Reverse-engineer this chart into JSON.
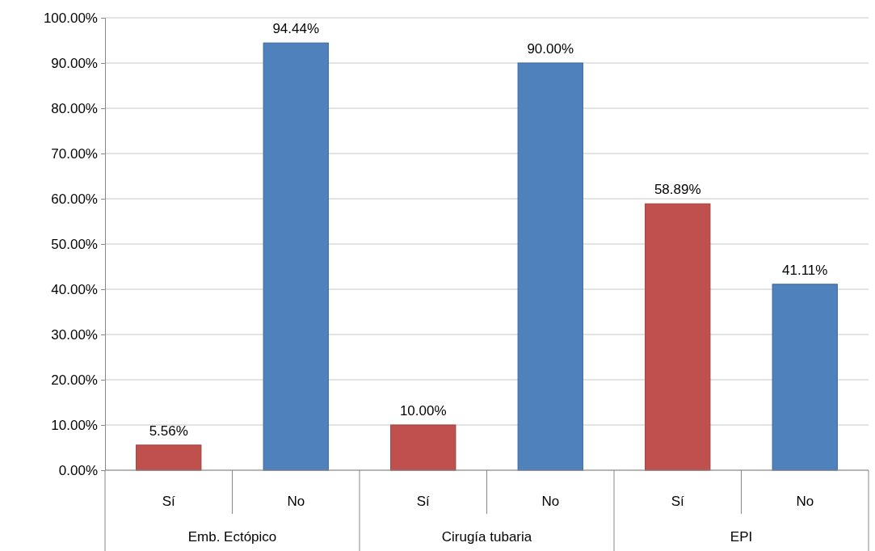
{
  "chart_data": {
    "type": "bar",
    "categories": [
      "Sí",
      "No",
      "Sí",
      "No",
      "Sí",
      "No"
    ],
    "values": [
      5.56,
      94.44,
      10.0,
      90.0,
      58.89,
      41.11
    ],
    "colors": [
      "#c0504d",
      "#4f81bd",
      "#c0504d",
      "#4f81bd",
      "#c0504d",
      "#4f81bd"
    ],
    "value_labels": [
      "5.56%",
      "94.44%",
      "10.00%",
      "90.00%",
      "58.89%",
      "41.11%"
    ],
    "annotations": [
      "Emb. Ectópico",
      "Cirugía tubaria",
      "EPI"
    ],
    "ylim": [
      0,
      100
    ],
    "yticks": [
      {
        "value": 0,
        "label": "0.00%"
      },
      {
        "value": 10,
        "label": "10.00%"
      },
      {
        "value": 20,
        "label": "20.00%"
      },
      {
        "value": 30,
        "label": "30.00%"
      },
      {
        "value": 40,
        "label": "40.00%"
      },
      {
        "value": 50,
        "label": "50.00%"
      },
      {
        "value": 60,
        "label": "60.00%"
      },
      {
        "value": 70,
        "label": "70.00%"
      },
      {
        "value": 80,
        "label": "80.00%"
      },
      {
        "value": 90,
        "label": "90.00%"
      },
      {
        "value": 100,
        "label": "100.00%"
      }
    ],
    "grid": "y"
  }
}
